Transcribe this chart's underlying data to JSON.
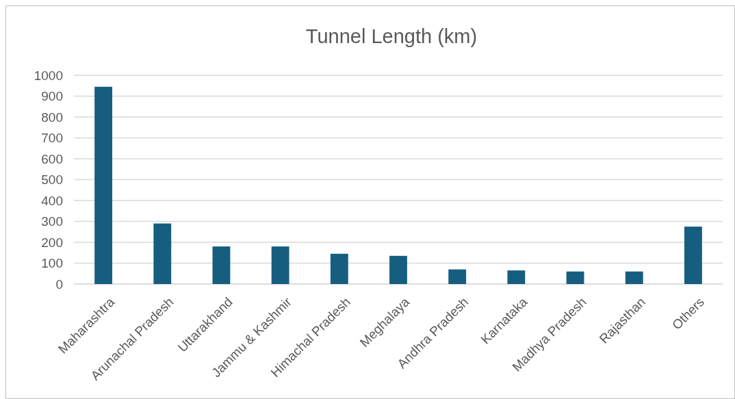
{
  "chart_data": {
    "type": "bar",
    "title": "Tunnel Length (km)",
    "categories": [
      "Maharashtra",
      "Arunachal Pradesh",
      "Uttarakhand",
      "Jammu & Kashmir",
      "Himachal Pradesh",
      "Meghalaya",
      "Andhra Pradesh",
      "Karnataka",
      "Madhya Pradesh",
      "Rajasthan",
      "Others"
    ],
    "values": [
      945,
      290,
      180,
      180,
      145,
      135,
      70,
      65,
      60,
      60,
      275
    ],
    "color": "#165e80",
    "ylim": [
      0,
      1000
    ],
    "yticks": [
      0,
      100,
      200,
      300,
      400,
      500,
      600,
      700,
      800,
      900,
      1000
    ],
    "grid": "y"
  }
}
